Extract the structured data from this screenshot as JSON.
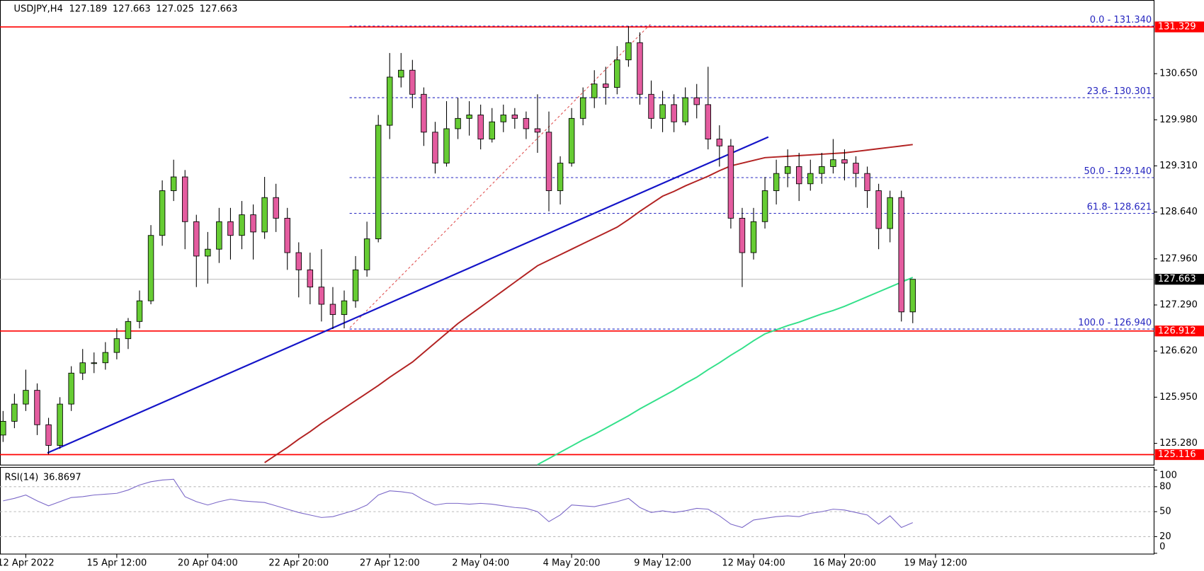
{
  "chart_data": [
    {
      "type": "candlestick",
      "symbol": "USDJPY,H4",
      "open": [
        125.4,
        125.6,
        125.85,
        126.05,
        125.55,
        125.25,
        125.85,
        126.3,
        126.45,
        126.45,
        126.6,
        126.8,
        127.05,
        127.35,
        128.3,
        128.95,
        129.15,
        128.5,
        128.0,
        128.1,
        128.5,
        128.3,
        128.6,
        128.35,
        128.85,
        128.55,
        128.05,
        127.8,
        127.55,
        127.3,
        127.15,
        127.35,
        127.8,
        128.25,
        129.9,
        130.6,
        130.7,
        130.35,
        129.8,
        129.35,
        129.85,
        130.0,
        130.05,
        129.7,
        129.95,
        130.05,
        130.0,
        129.85,
        129.8,
        128.95,
        129.35,
        130.0,
        130.3,
        130.5,
        130.45,
        130.85,
        131.1,
        130.35,
        130.0,
        130.2,
        129.95,
        130.3,
        130.2,
        129.7,
        129.6,
        128.55,
        128.05,
        128.5,
        128.95,
        129.2,
        129.3,
        129.05,
        129.2,
        129.3,
        129.4,
        129.35,
        129.2,
        128.95,
        128.4,
        128.85,
        127.189
      ],
      "high": [
        125.75,
        126.0,
        126.35,
        126.15,
        125.65,
        125.95,
        126.4,
        126.65,
        126.6,
        126.75,
        126.95,
        127.1,
        127.5,
        128.45,
        129.1,
        129.4,
        129.25,
        128.6,
        128.35,
        128.7,
        128.7,
        128.8,
        128.75,
        129.15,
        129.05,
        128.7,
        128.2,
        128.05,
        128.1,
        127.55,
        127.5,
        128.0,
        128.5,
        130.05,
        130.95,
        130.95,
        130.85,
        130.45,
        129.95,
        130.25,
        130.3,
        130.25,
        130.2,
        130.15,
        130.2,
        130.15,
        130.1,
        130.35,
        130.1,
        129.45,
        130.15,
        130.45,
        130.7,
        130.75,
        131.05,
        131.34,
        131.25,
        130.55,
        130.4,
        130.35,
        130.45,
        130.5,
        130.75,
        129.9,
        129.7,
        128.7,
        128.7,
        129.15,
        129.4,
        129.55,
        129.5,
        129.4,
        129.5,
        129.7,
        129.55,
        129.45,
        129.3,
        129.05,
        128.95,
        128.95,
        127.663
      ],
      "low": [
        125.3,
        125.5,
        125.75,
        125.4,
        125.12,
        125.2,
        125.75,
        126.2,
        126.3,
        126.35,
        126.5,
        126.65,
        126.95,
        127.3,
        128.15,
        128.8,
        128.1,
        127.55,
        127.6,
        127.9,
        127.95,
        128.1,
        127.95,
        128.25,
        128.35,
        127.8,
        127.4,
        127.3,
        127.05,
        126.94,
        126.95,
        127.25,
        127.7,
        128.2,
        129.7,
        130.45,
        130.15,
        129.6,
        129.2,
        129.3,
        129.7,
        129.75,
        129.55,
        129.65,
        129.8,
        129.85,
        129.7,
        129.5,
        128.65,
        128.75,
        129.3,
        129.9,
        130.15,
        130.2,
        130.35,
        130.75,
        130.2,
        129.85,
        129.8,
        129.8,
        129.9,
        130.0,
        129.55,
        129.3,
        128.4,
        127.55,
        127.95,
        128.4,
        128.75,
        129.0,
        128.8,
        128.95,
        129.05,
        129.2,
        129.1,
        129.0,
        128.7,
        128.1,
        128.2,
        127.05,
        127.025
      ],
      "close": [
        125.6,
        125.85,
        126.05,
        125.55,
        125.25,
        125.85,
        126.3,
        126.45,
        126.45,
        126.6,
        126.8,
        127.05,
        127.35,
        128.3,
        128.95,
        129.15,
        128.5,
        128.0,
        128.1,
        128.5,
        128.3,
        128.6,
        128.35,
        128.85,
        128.55,
        128.05,
        127.8,
        127.55,
        127.3,
        127.15,
        127.35,
        127.8,
        128.25,
        129.9,
        130.6,
        130.7,
        130.35,
        129.8,
        129.35,
        129.85,
        130.0,
        130.05,
        129.7,
        129.95,
        130.05,
        130.0,
        129.85,
        129.8,
        128.95,
        129.35,
        130.0,
        130.3,
        130.5,
        130.45,
        130.85,
        131.1,
        130.35,
        130.0,
        130.2,
        129.95,
        130.3,
        130.2,
        129.7,
        129.6,
        128.55,
        128.05,
        128.5,
        128.95,
        129.2,
        129.3,
        129.05,
        129.2,
        129.3,
        129.4,
        129.35,
        129.2,
        128.95,
        128.4,
        128.85,
        127.189,
        127.663
      ],
      "up_color": "#66cc33",
      "down_color": "#e45c9f",
      "series": [
        {
          "color": "#b22222",
          "values": [
            null,
            null,
            null,
            null,
            null,
            null,
            null,
            null,
            null,
            null,
            null,
            null,
            null,
            null,
            null,
            null,
            null,
            null,
            null,
            null,
            null,
            null,
            null,
            125.0,
            125.11,
            125.22,
            125.34,
            125.45,
            125.57,
            125.68,
            125.79,
            125.9,
            126.01,
            126.12,
            126.24,
            126.35,
            126.46,
            126.6,
            126.74,
            126.88,
            127.02,
            127.14,
            127.26,
            127.38,
            127.5,
            127.62,
            127.74,
            127.86,
            127.94,
            128.02,
            128.1,
            128.18,
            128.26,
            128.34,
            128.42,
            128.53,
            128.65,
            128.76,
            128.87,
            128.94,
            129.02,
            129.09,
            129.16,
            129.24,
            129.31,
            129.35,
            129.39,
            129.43,
            129.44,
            129.45,
            129.46,
            129.47,
            129.48,
            129.49,
            129.5,
            129.52,
            129.54,
            129.56,
            129.58,
            129.6,
            129.62
          ]
        },
        {
          "color": "#33e08a",
          "values": [
            null,
            null,
            null,
            null,
            null,
            null,
            null,
            null,
            null,
            null,
            null,
            null,
            null,
            null,
            null,
            null,
            null,
            null,
            null,
            null,
            null,
            null,
            null,
            null,
            null,
            null,
            null,
            null,
            null,
            null,
            null,
            null,
            null,
            null,
            null,
            null,
            null,
            null,
            null,
            null,
            null,
            null,
            null,
            null,
            null,
            null,
            null,
            124.97,
            125.06,
            125.15,
            125.24,
            125.33,
            125.41,
            125.5,
            125.59,
            125.68,
            125.78,
            125.87,
            125.96,
            126.05,
            126.15,
            126.24,
            126.35,
            126.45,
            126.56,
            126.66,
            126.77,
            126.87,
            126.93,
            126.99,
            127.04,
            127.1,
            127.16,
            127.21,
            127.27,
            127.34,
            127.41,
            127.48,
            127.55,
            127.62,
            127.69
          ]
        }
      ],
      "trendline": {
        "x": [
          3.9,
          67.3
        ],
        "y": [
          125.14,
          129.73
        ],
        "color": "#1414c8"
      },
      "fib_line": {
        "x": [
          30.5,
          57.0
        ],
        "y": [
          126.96,
          131.38
        ],
        "color": "#e05050"
      },
      "levels": [
        131.329,
        126.912,
        125.116
      ],
      "level_color": "#ff0000",
      "fib_levels": [
        {
          "value": 131.34,
          "label": "0.0 - 131.340"
        },
        {
          "value": 130.301,
          "label": "23.6- 130.301"
        },
        {
          "value": 129.14,
          "label": "50.0 - 129.140"
        },
        {
          "value": 128.621,
          "label": "61.8- 128.621"
        },
        {
          "value": 126.94,
          "label": "100.0 - 126.940"
        }
      ],
      "fib_color": "#2626c0",
      "xlim": [
        -0.27,
        101.22
      ],
      "ylim": [
        124.97,
        131.72
      ],
      "yticks": [
        {
          "value": 125.28,
          "label": "125.280"
        },
        {
          "value": 125.95,
          "label": "125.950"
        },
        {
          "value": 126.62,
          "label": "126.620"
        },
        {
          "value": 127.29,
          "label": "127.290"
        },
        {
          "value": 127.96,
          "label": "127.960"
        },
        {
          "value": 128.64,
          "label": "128.640"
        },
        {
          "value": 129.31,
          "label": "129.310"
        },
        {
          "value": 129.98,
          "label": "129.980"
        },
        {
          "value": 130.65,
          "label": "130.650"
        }
      ],
      "xticks": [
        {
          "value": 2,
          "label": "12 Apr 2022"
        },
        {
          "value": 10,
          "label": "15 Apr 12:00"
        },
        {
          "value": 18,
          "label": "20 Apr 04:00"
        },
        {
          "value": 26,
          "label": "22 Apr 20:00"
        },
        {
          "value": 34,
          "label": "27 Apr 12:00"
        },
        {
          "value": 42,
          "label": "2 May 04:00"
        },
        {
          "value": 50,
          "label": "4 May 20:00"
        },
        {
          "value": 58,
          "label": "9 May 12:00"
        },
        {
          "value": 66,
          "label": "12 May 04:00"
        },
        {
          "value": 74,
          "label": "16 May 20:00"
        },
        {
          "value": 82,
          "label": "19 May 12:00"
        }
      ]
    },
    {
      "type": "line",
      "title": "RSI(14)",
      "color": "#7b68c8",
      "values": [
        63,
        66,
        70,
        63,
        57,
        62,
        67,
        68,
        70,
        71,
        72,
        76,
        82,
        86,
        88,
        89,
        68,
        62,
        58,
        62,
        65,
        63,
        62,
        61,
        57,
        53,
        49,
        46,
        43,
        44,
        48,
        52,
        58,
        70,
        75,
        74,
        72,
        64,
        58,
        60,
        60,
        59,
        60,
        59,
        57,
        55,
        54,
        50,
        38,
        46,
        58,
        57,
        56,
        59,
        62,
        66,
        55,
        49,
        51,
        49,
        51,
        54,
        53,
        45,
        35,
        31,
        40,
        42,
        44,
        45,
        44,
        48,
        50,
        53,
        52,
        49,
        46,
        35,
        45,
        31,
        36.8697
      ],
      "ylim": [
        0,
        100
      ],
      "yticks": [
        0,
        20,
        50,
        80,
        100
      ]
    }
  ]
}
